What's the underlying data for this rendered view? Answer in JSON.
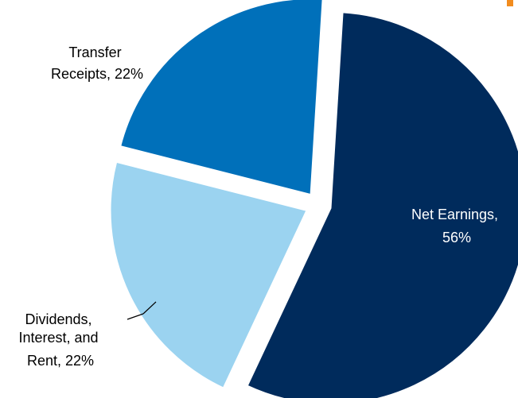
{
  "chart_data": {
    "type": "pie",
    "title": "",
    "slices": [
      {
        "label_lines": [
          "Net Earnings,",
          "56%"
        ],
        "value": 56,
        "color": "#002b5c"
      },
      {
        "label_lines": [
          "Dividends,",
          "Interest, and",
          "Rent, 22%"
        ],
        "value": 22,
        "color": "#9bd3f0"
      },
      {
        "label_lines": [
          "Transfer",
          "Receipts, 22%"
        ],
        "value": 22,
        "color": "#0070ba"
      }
    ]
  },
  "accent_color": "#f28c1e"
}
